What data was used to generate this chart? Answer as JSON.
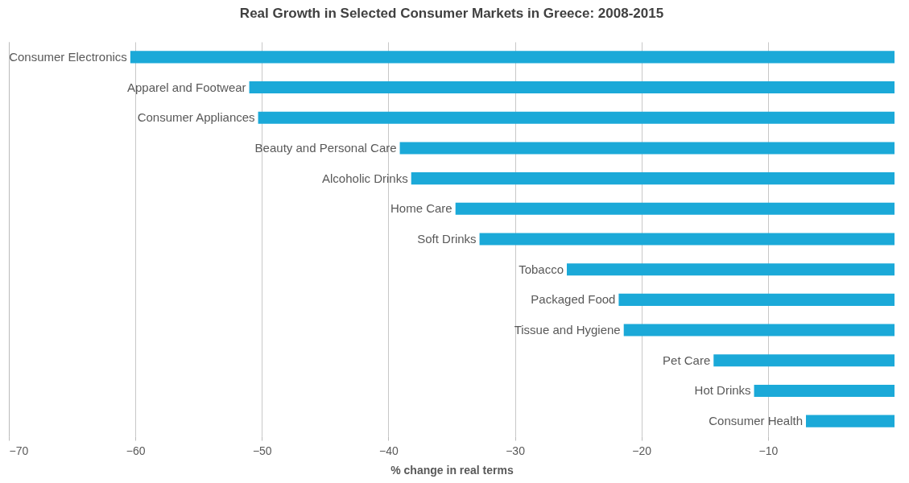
{
  "chart_data": {
    "type": "bar",
    "orientation": "horizontal",
    "title": "Real Growth in Selected Consumer Markets in Greece: 2008-2015",
    "xlabel": "% change in real terms",
    "categories": [
      "Consumer Electronics",
      "Apparel and Footwear",
      "Consumer Appliances",
      "Beauty and Personal Care",
      "Alcoholic Drinks",
      "Home Care",
      "Soft Drinks",
      "Tobacco",
      "Packaged Food",
      "Tissue and Hygiene",
      "Pet Care",
      "Hot Drinks",
      "Consumer Health"
    ],
    "values": [
      -60.4,
      -51.0,
      -50.3,
      -39.1,
      -38.2,
      -34.7,
      -32.8,
      -25.9,
      -21.8,
      -21.4,
      -14.3,
      -11.1,
      -7.0
    ],
    "color": "#1ba9d8",
    "xlim": [
      -70,
      0
    ],
    "xticks": [
      -70,
      -60,
      -50,
      -40,
      -30,
      -20,
      -10
    ],
    "grid": "x",
    "tick_labels": "x"
  }
}
